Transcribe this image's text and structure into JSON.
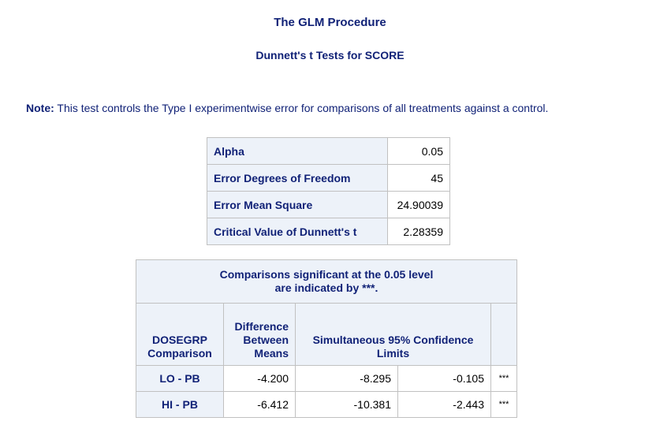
{
  "header": {
    "procedure_title": "The GLM Procedure",
    "test_title": "Dunnett's t Tests for SCORE"
  },
  "note": {
    "label": "Note:",
    "text": "This test controls the Type I experimentwise error for comparisons of all treatments against a control."
  },
  "stats_table": {
    "rows": [
      {
        "label": "Alpha",
        "value": "0.05"
      },
      {
        "label": "Error Degrees of Freedom",
        "value": "45"
      },
      {
        "label": "Error Mean Square",
        "value": "24.90039"
      },
      {
        "label": "Critical Value of Dunnett's t",
        "value": "2.28359"
      }
    ]
  },
  "comparison_table": {
    "caption_line1": "Comparisons significant at the 0.05 level",
    "caption_line2": "are indicated by ***.",
    "headers": {
      "group_line1": "DOSEGRP",
      "group_line2": "Comparison",
      "diff_line1": "Difference",
      "diff_line2": "Between",
      "diff_line3": "Means",
      "limits_line1": "Simultaneous 95% Confidence",
      "limits_line2": "Limits"
    },
    "rows": [
      {
        "comparison": "LO - PB",
        "difference": "-4.200",
        "lower": "-8.295",
        "upper": "-0.105",
        "sig": "***"
      },
      {
        "comparison": "HI - PB",
        "difference": "-6.412",
        "lower": "-10.381",
        "upper": "-2.443",
        "sig": "***"
      }
    ]
  }
}
